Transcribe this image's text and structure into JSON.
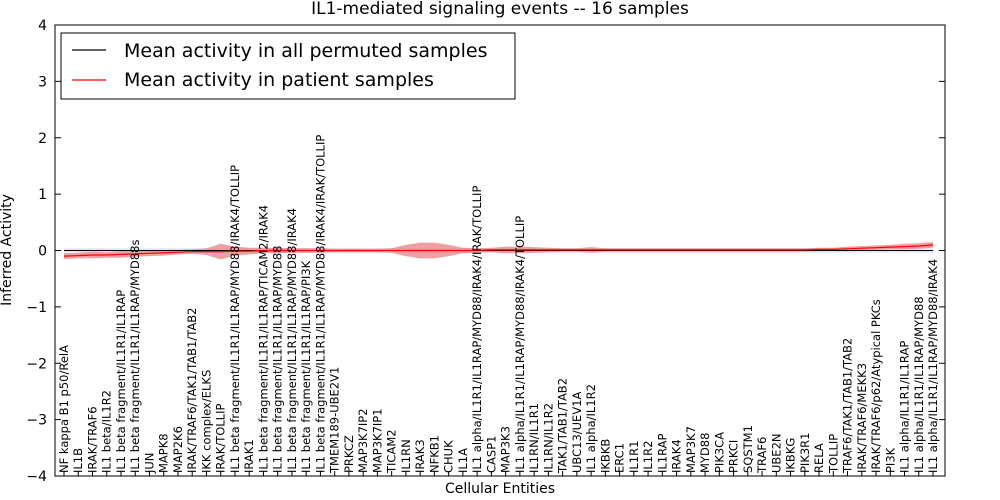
{
  "chart_data": {
    "type": "line",
    "title": "IL1-mediated signaling events -- 16 samples",
    "xlabel": "Cellular Entities",
    "ylabel": "Inferred Activity",
    "ylim": [
      -4,
      4
    ],
    "yticks": [
      "4",
      "3",
      "2",
      "1",
      "0",
      "−1",
      "−2",
      "−3",
      "−4"
    ],
    "grid": false,
    "legend_position": "top-left",
    "categories": [
      "NF kappa B1 p50/RelA",
      "IL1B",
      "IRAK/TRAF6",
      "IL1 beta/IL1R2",
      "IL1 beta fragment/IL1R1/IL1RAP",
      "IL1 beta fragment/IL1R1/IL1RAP/MYD88s",
      "JUN",
      "MAPK8",
      "MAP2K6",
      "IRAK/TRAF6/TAK1/TAB1/TAB2",
      "IKK complex/ELKS",
      "IRAK/TOLLIP",
      "IL1 beta fragment/IL1R1/IL1RAP/MYD88/IRAK4/TOLLIP",
      "IRAK1",
      "IL1 beta fragment/IL1R1/IL1RAP/TICAM2/IRAK4",
      "IL1 beta fragment/IL1R1/IL1RAP/MYD88",
      "IL1 beta fragment/IL1R1/IL1RAP/MYD88/IRAK4",
      "IL1 beta fragment/IL1R1/IL1RAP/PI3K",
      "IL1 beta fragment/IL1R1/IL1RAP/MYD88/IRAK4/IRAK/TOLLIP",
      "TMEM189-UBE2V1",
      "PRKCZ",
      "MAP3K7IP2",
      "MAP3K7IP1",
      "TICAM2",
      "IL1RN",
      "IRAK3",
      "NFKB1",
      "CHUK",
      "IL1A",
      "IL1 alpha/IL1R1/IL1RAP/MYD88/IRAK4/IRAK/TOLLIP",
      "CASP1",
      "MAP3K3",
      "IL1 alpha/IL1R1/IL1RAP/MYD88/IRAK4/TOLLIP",
      "IL1RN/IL1R1",
      "IL1RN/IL1R2",
      "TAK1/TAB1/TAB2",
      "UBC13/UEV1A",
      "IL1 alpha/IL1R2",
      "IKBKB",
      "ERC1",
      "IL1R1",
      "IL1R2",
      "IL1RAP",
      "IRAK4",
      "MAP3K7",
      "MYD88",
      "PIK3CA",
      "PRKCI",
      "SQSTM1",
      "TRAF6",
      "UBE2N",
      "IKBKG",
      "PIK3R1",
      "RELA",
      "TOLLIP",
      "TRAF6/TAK1/TAB1/TAB2",
      "IRAK/TRAF6/MEKK3",
      "IRAK/TRAF6/p62/Atypical PKCs",
      "PI3K",
      "IL1 alpha/IL1R1/IL1RAP",
      "IL1 alpha/IL1R1/IL1RAP/MYD88",
      "IL1 alpha/IL1R1/IL1RAP/MYD88/IRAK4"
    ],
    "series": [
      {
        "name": "Mean activity in all permuted samples",
        "color": "#000000",
        "values": [
          0,
          0,
          0,
          0,
          0,
          0,
          0,
          0,
          0,
          0,
          0,
          0,
          0,
          0,
          0,
          0,
          0,
          0,
          0,
          0,
          0,
          0,
          0,
          0,
          0,
          0,
          0,
          0,
          0,
          0,
          0,
          0,
          0,
          0,
          0,
          0,
          0,
          0,
          0,
          0,
          0,
          0,
          0,
          0,
          0,
          0,
          0,
          0,
          0,
          0,
          0,
          0,
          0,
          0,
          0,
          0,
          0,
          0,
          0,
          0,
          0,
          0
        ],
        "band": [
          0.04,
          0.04,
          0.04,
          0.04,
          0.04,
          0.04,
          0.04,
          0.04,
          0.04,
          0.04,
          0.04,
          0.04,
          0.04,
          0.04,
          0.04,
          0.04,
          0.04,
          0.04,
          0.04,
          0.04,
          0.04,
          0.04,
          0.04,
          0.04,
          0.04,
          0.04,
          0.04,
          0.04,
          0.04,
          0.04,
          0.04,
          0.04,
          0.04,
          0.04,
          0.04,
          0.04,
          0.04,
          0.04,
          0.04,
          0.04,
          0.04,
          0.04,
          0.04,
          0.04,
          0.04,
          0.04,
          0.04,
          0.04,
          0.04,
          0.04,
          0.04,
          0.04,
          0.04,
          0.04,
          0.04,
          0.04,
          0.04,
          0.04,
          0.04,
          0.04,
          0.04,
          0.04
        ]
      },
      {
        "name": "Mean activity in patient samples",
        "color": "#ff0000",
        "values": [
          -0.1,
          -0.09,
          -0.08,
          -0.08,
          -0.07,
          -0.06,
          -0.05,
          -0.04,
          -0.03,
          -0.02,
          -0.02,
          -0.02,
          -0.01,
          -0.01,
          0,
          0,
          0,
          0,
          0,
          0,
          0,
          0,
          0,
          0,
          0,
          0,
          0,
          0,
          0,
          0,
          0.01,
          0.01,
          0.01,
          0.01,
          0.01,
          0.01,
          0.01,
          0.01,
          0.01,
          0.01,
          0.01,
          0.01,
          0.01,
          0.01,
          0.01,
          0.01,
          0.01,
          0.01,
          0.01,
          0.01,
          0.01,
          0.01,
          0.01,
          0.02,
          0.02,
          0.03,
          0.04,
          0.05,
          0.06,
          0.07,
          0.08,
          0.1
        ],
        "band": [
          0.05,
          0.05,
          0.06,
          0.05,
          0.06,
          0.05,
          0.05,
          0.05,
          0.04,
          0.04,
          0.06,
          0.14,
          0.08,
          0.06,
          0.05,
          0.05,
          0.04,
          0.04,
          0.04,
          0.03,
          0.03,
          0.03,
          0.03,
          0.04,
          0.1,
          0.14,
          0.14,
          0.1,
          0.05,
          0.04,
          0.04,
          0.06,
          0.06,
          0.05,
          0.04,
          0.03,
          0.03,
          0.05,
          0.03,
          0.03,
          0.03,
          0.03,
          0.03,
          0.03,
          0.03,
          0.03,
          0.03,
          0.03,
          0.03,
          0.03,
          0.03,
          0.03,
          0.03,
          0.03,
          0.03,
          0.04,
          0.04,
          0.04,
          0.04,
          0.05,
          0.05,
          0.05
        ]
      }
    ]
  }
}
